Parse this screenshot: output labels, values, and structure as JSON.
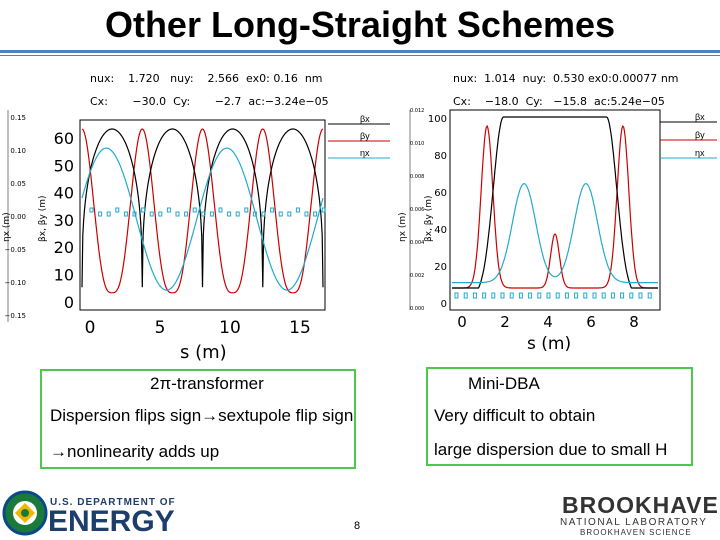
{
  "title": "Other Long-Straight Schemes",
  "left_plot": {
    "header": {
      "nux": "nux:",
      "nux_val": "1.720",
      "nuy": "nuy:",
      "nuy_val": "2.566",
      "ex0": "ex0:",
      "ex0_val": "0.16",
      "ex0_unit": "nm",
      "cx": "Cx:",
      "cx_val": "−30.0",
      "cy": "Cy:",
      "cy_val": "−2.7",
      "ac": "ac:−3.24e−05"
    },
    "legend": [
      "βx",
      "βy",
      "ηx"
    ],
    "left_ticks": [
      "0.15",
      "0.10",
      "0.05",
      "0.00",
      "−0.05",
      "−0.10",
      "−0.15"
    ],
    "beta_ticks": [
      "60",
      "50",
      "40",
      "30",
      "20",
      "10",
      "0"
    ],
    "x_ticks": [
      "0",
      "5",
      "10",
      "15"
    ],
    "xlabel": "s (m)",
    "ylabel": "ηx (m)  βx, βy (m)"
  },
  "right_plot": {
    "header": {
      "nux": "nux:",
      "nux_val": "1.014",
      "nuy": "nuy:",
      "nuy_val": "0.530",
      "ex0": "ex0:0.00077",
      "ex0_unit": "nm",
      "cx": "Cx:",
      "cx_val": "−18.0",
      "cy": "Cy:",
      "cy_val": "−15.8",
      "ac": "ac:5.24e−05"
    },
    "legend": [
      "βx",
      "βy",
      "ηx"
    ],
    "left_ticks": [
      "0.012",
      "0.010",
      "0.008",
      "0.006",
      "0.004",
      "0.002",
      "0.000"
    ],
    "beta_ticks": [
      "100",
      "80",
      "60",
      "40",
      "20",
      "0"
    ],
    "x_ticks": [
      "0",
      "2",
      "4",
      "6",
      "8"
    ],
    "xlabel": "s (m)",
    "ylabel": "ηx (m)  βx, βy (m)"
  },
  "left_box": {
    "heading": "2π-transformer",
    "line1": "Dispersion flips sign→sextupole flip sign",
    "line2": "→nonlinearity adds up"
  },
  "right_box": {
    "heading": "Mini-DBA",
    "line1": "Very difficult to obtain",
    "line2": "large dispersion due to small H"
  },
  "footer": {
    "doe_top": "U.S. DEPARTMENT OF",
    "doe_main": "ENERGY",
    "page": "8",
    "bnl_main": "BROOKHAVEN",
    "bnl_sub": "NATIONAL LABORATORY",
    "bnl_small": "BROOKHAVEN SCIENCE"
  },
  "colors": {
    "betax": "#000000",
    "betay": "#cc0000",
    "eta": "#22aacc",
    "box": "#4cc94c",
    "rule": "#4f81bd"
  }
}
